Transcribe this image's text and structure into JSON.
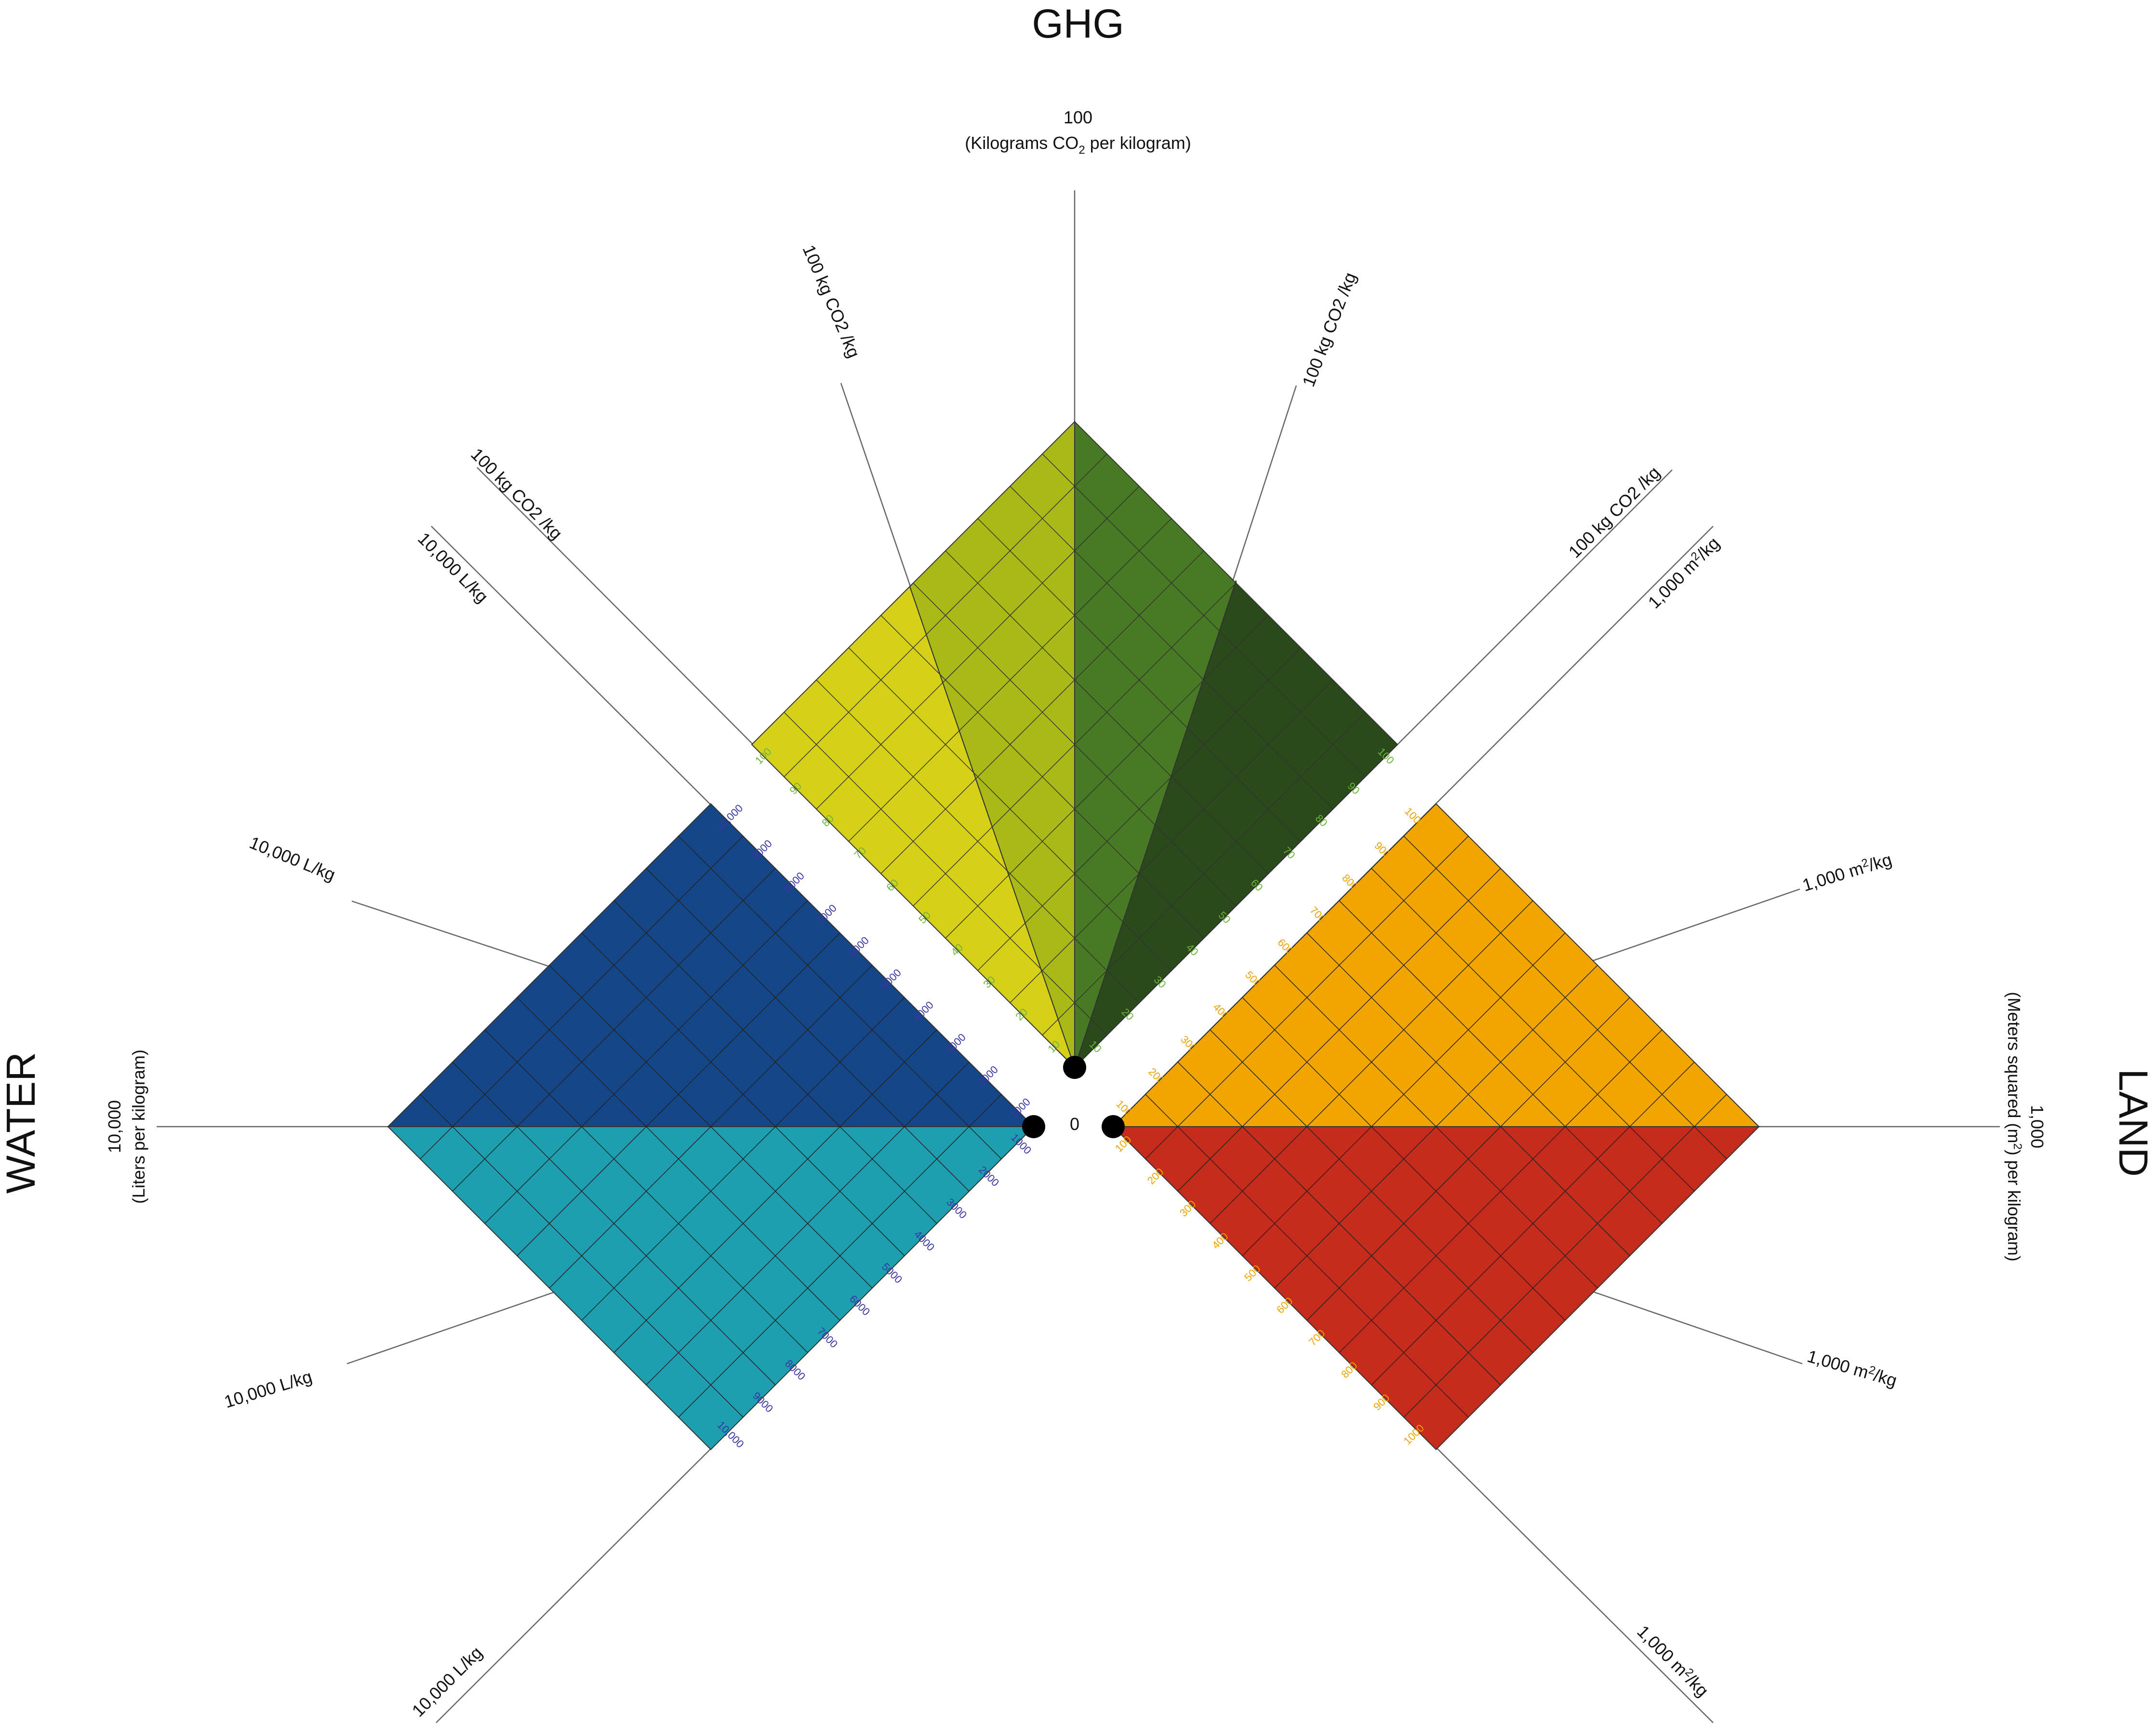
{
  "titles": {
    "ghg": "GHG",
    "water": "WATER",
    "land": "LAND"
  },
  "origin_label": "0",
  "axis_captions": {
    "ghg_value": "100",
    "ghg_unit_prefix": "(Kilograms CO",
    "ghg_unit_sub": "2",
    "ghg_unit_suffix": " per kilogram)",
    "water_value": "10,000",
    "water_unit": "(Liters per kilogram)",
    "land_value": "1,000",
    "land_unit_prefix": "(Meters squared (m",
    "land_unit_sup": "2",
    "land_unit_suffix": ") per kilogram)"
  },
  "ray_labels": {
    "ghg": "100 kg CO2 /kg",
    "water": "10,000 L/kg",
    "land_prefix": "1,000 m",
    "land_sup": "2",
    "land_suffix": "/kg"
  },
  "scales": {
    "ghg": [
      "10",
      "20",
      "30",
      "40",
      "50",
      "60",
      "70",
      "80",
      "90",
      "100"
    ],
    "water": [
      "1000",
      "2000",
      "3000",
      "4000",
      "5000",
      "6000",
      "7000",
      "8000",
      "9000",
      "10,000"
    ],
    "land": [
      "100",
      "200",
      "300",
      "400",
      "500",
      "600",
      "700",
      "800",
      "900",
      "1000"
    ]
  },
  "colors": {
    "ghg_light_left": "#d6d017",
    "ghg_mid_left": "#a9ba16",
    "ghg_mid_right": "#477a22",
    "ghg_dark_right": "#2b4a1c",
    "water_dark": "#154688",
    "water_light": "#1d9fb0",
    "land_orange": "#f2a500",
    "land_red": "#c62b1c",
    "scale_green": "#6bb33a",
    "scale_blue": "#3a35a5",
    "scale_orange": "#eea400",
    "line": "#444444",
    "text": "#111111"
  }
}
